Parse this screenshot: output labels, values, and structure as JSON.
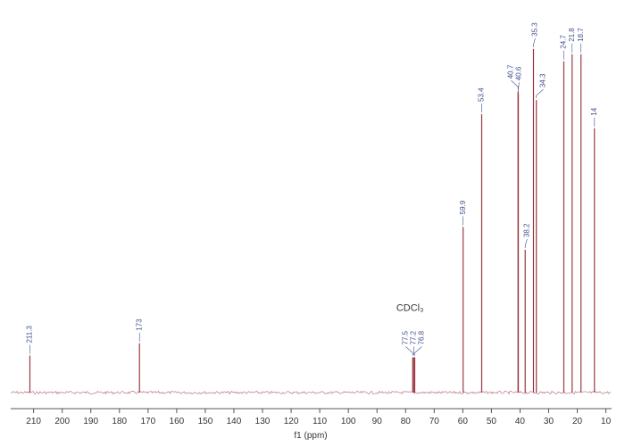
{
  "chart_data": {
    "type": "stick",
    "x": [
      211.3,
      173.0,
      77.5,
      77.2,
      76.8,
      59.9,
      53.4,
      40.7,
      40.6,
      38.2,
      35.3,
      34.3,
      24.7,
      21.8,
      18.7,
      14.0
    ],
    "values": [
      10.5,
      14,
      10,
      10,
      10,
      47,
      79,
      85.5,
      85,
      40.5,
      97.5,
      83,
      94,
      96,
      96,
      75
    ],
    "color": "#9b3a44",
    "label_color": "#3f4f8f",
    "xlim": [
      218,
      8
    ],
    "xticks": [
      210,
      200,
      190,
      180,
      170,
      160,
      150,
      140,
      130,
      120,
      110,
      100,
      90,
      80,
      70,
      60,
      50,
      40,
      30,
      20,
      10
    ],
    "ylim": [
      0,
      100
    ],
    "xlabel": "f1 (ppm)",
    "annotation": "CDCl₃"
  }
}
